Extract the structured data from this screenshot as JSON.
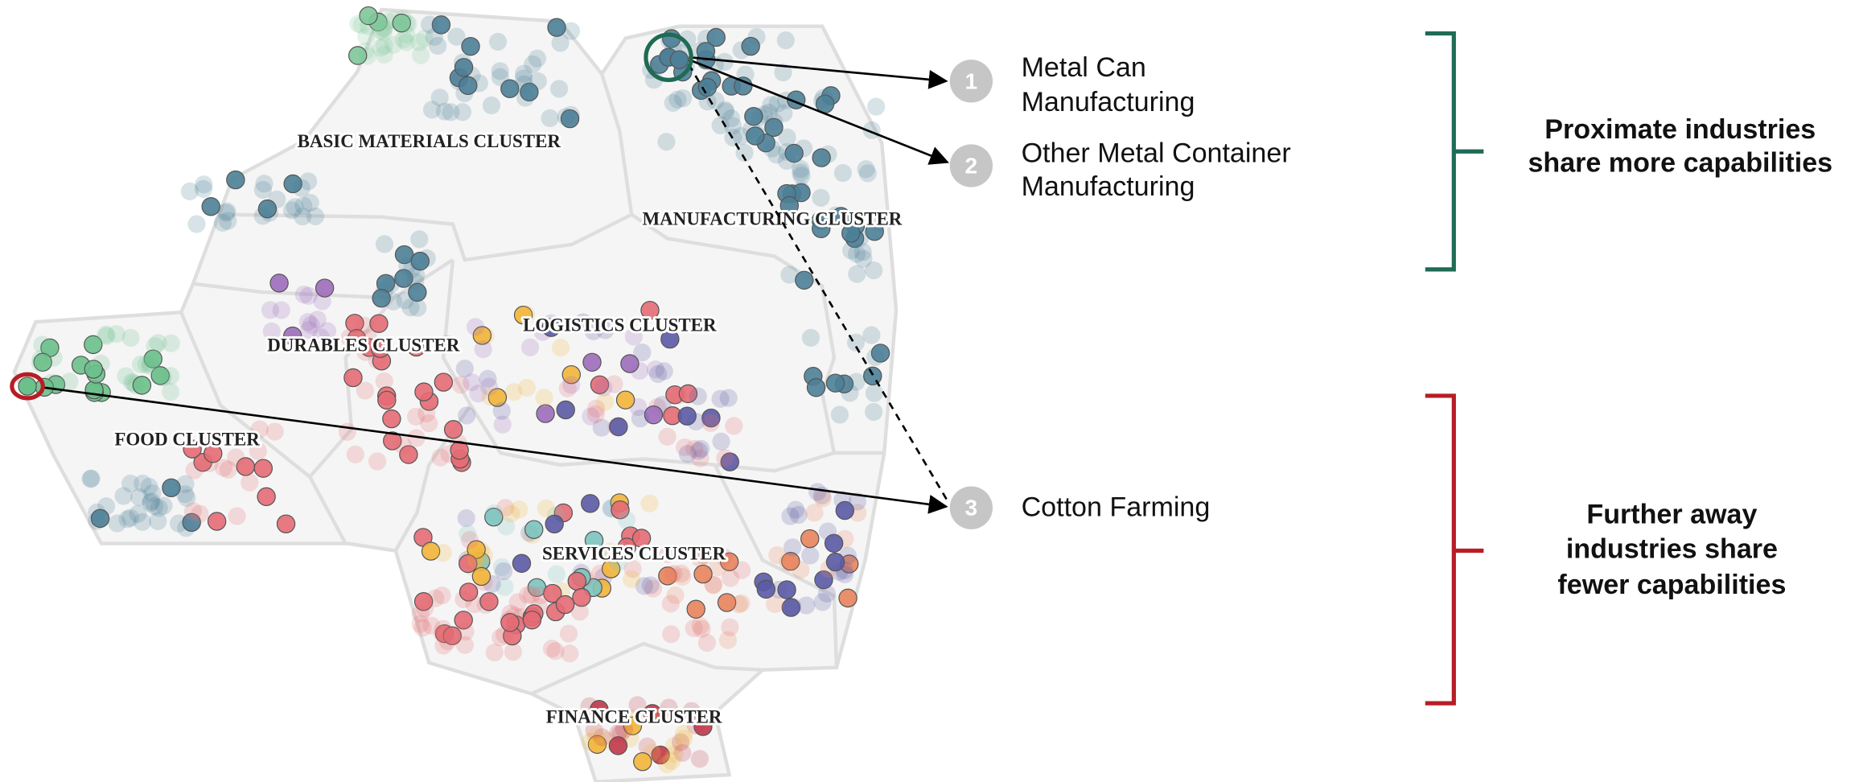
{
  "clusters": [
    {
      "label": "BASIC MATERIALS CLUSTER"
    },
    {
      "label": "MANUFACTURING CLUSTER"
    },
    {
      "label": "DURABLES CLUSTER"
    },
    {
      "label": "LOGISTICS CLUSTER"
    },
    {
      "label": "FOOD CLUSTER"
    },
    {
      "label": "SERVICES CLUSTER"
    },
    {
      "label": "FINANCE CLUSTER"
    }
  ],
  "callouts": [
    {
      "number": "1",
      "label_lines": [
        "Metal Can",
        "Manufacturing"
      ]
    },
    {
      "number": "2",
      "label_lines": [
        "Other Metal Container",
        "Manufacturing"
      ]
    },
    {
      "number": "3",
      "label_lines": [
        "Cotton Farming"
      ]
    }
  ],
  "brackets": [
    {
      "lines": [
        "Proximate industries",
        "share more capabilities"
      ]
    },
    {
      "lines": [
        "Further away",
        "industries share",
        "fewer capabilities"
      ]
    }
  ]
}
